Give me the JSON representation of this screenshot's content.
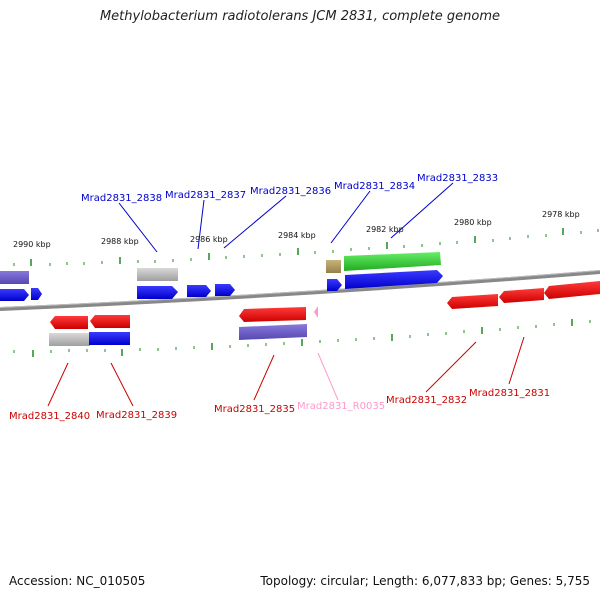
{
  "title": "Methylobacterium radiotolerans JCM 2831, complete genome",
  "footer": {
    "accession": "Accession: NC_010505",
    "info": "Topology: circular; Length: 6,077,833 bp; Genes: 5,755"
  },
  "scale_labels": [
    "2990 kbp",
    "2988 kbp",
    "2986 kbp",
    "2984 kbp",
    "2982 kbp",
    "2980 kbp",
    "2978 kbp"
  ],
  "gene_labels_top": [
    "Mrad2831_2838",
    "Mrad2831_2837",
    "Mrad2831_2836",
    "Mrad2831_2834",
    "Mrad2831_2833"
  ],
  "gene_labels_bottom": [
    "Mrad2831_2840",
    "Mrad2831_2839",
    "Mrad2831_2835",
    "Mrad2831_R0035",
    "Mrad2831_2832",
    "Mrad2831_2831"
  ],
  "colors": {
    "forward_gene": "#0000ee",
    "reverse_gene": "#ee0000",
    "label_top": "#0000cc",
    "label_bottom": "#cc0000",
    "rna": "#ff99cc",
    "green_feature": "#33cc33",
    "purple_feature": "#6a5acd",
    "grey_feature": "#bbbbbb",
    "tan_feature": "#b09a60",
    "backbone": "#888888",
    "tick": "#228822"
  }
}
